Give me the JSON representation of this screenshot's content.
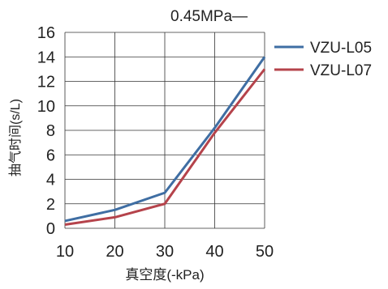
{
  "chart_data": {
    "type": "line",
    "annotation": "0.45MPa—",
    "xlabel": "真空度(-kPa)",
    "ylabel": "抽气时间(s/L)",
    "x": [
      10,
      20,
      30,
      40,
      50
    ],
    "xlim": [
      10,
      50
    ],
    "ylim": [
      0,
      16
    ],
    "xticks": [
      "10",
      "20",
      "30",
      "40",
      "50"
    ],
    "yticks": [
      "0",
      "2",
      "4",
      "6",
      "8",
      "10",
      "12",
      "14",
      "16"
    ],
    "grid": true,
    "legend_position": "right",
    "series": [
      {
        "name": "VZU-L05",
        "color": "#3f6ea3",
        "values": [
          0.6,
          1.5,
          2.9,
          8.2,
          14.0
        ]
      },
      {
        "name": "VZU-L07",
        "color": "#b5434b",
        "values": [
          0.3,
          0.9,
          2.0,
          7.8,
          13.0
        ]
      }
    ]
  }
}
